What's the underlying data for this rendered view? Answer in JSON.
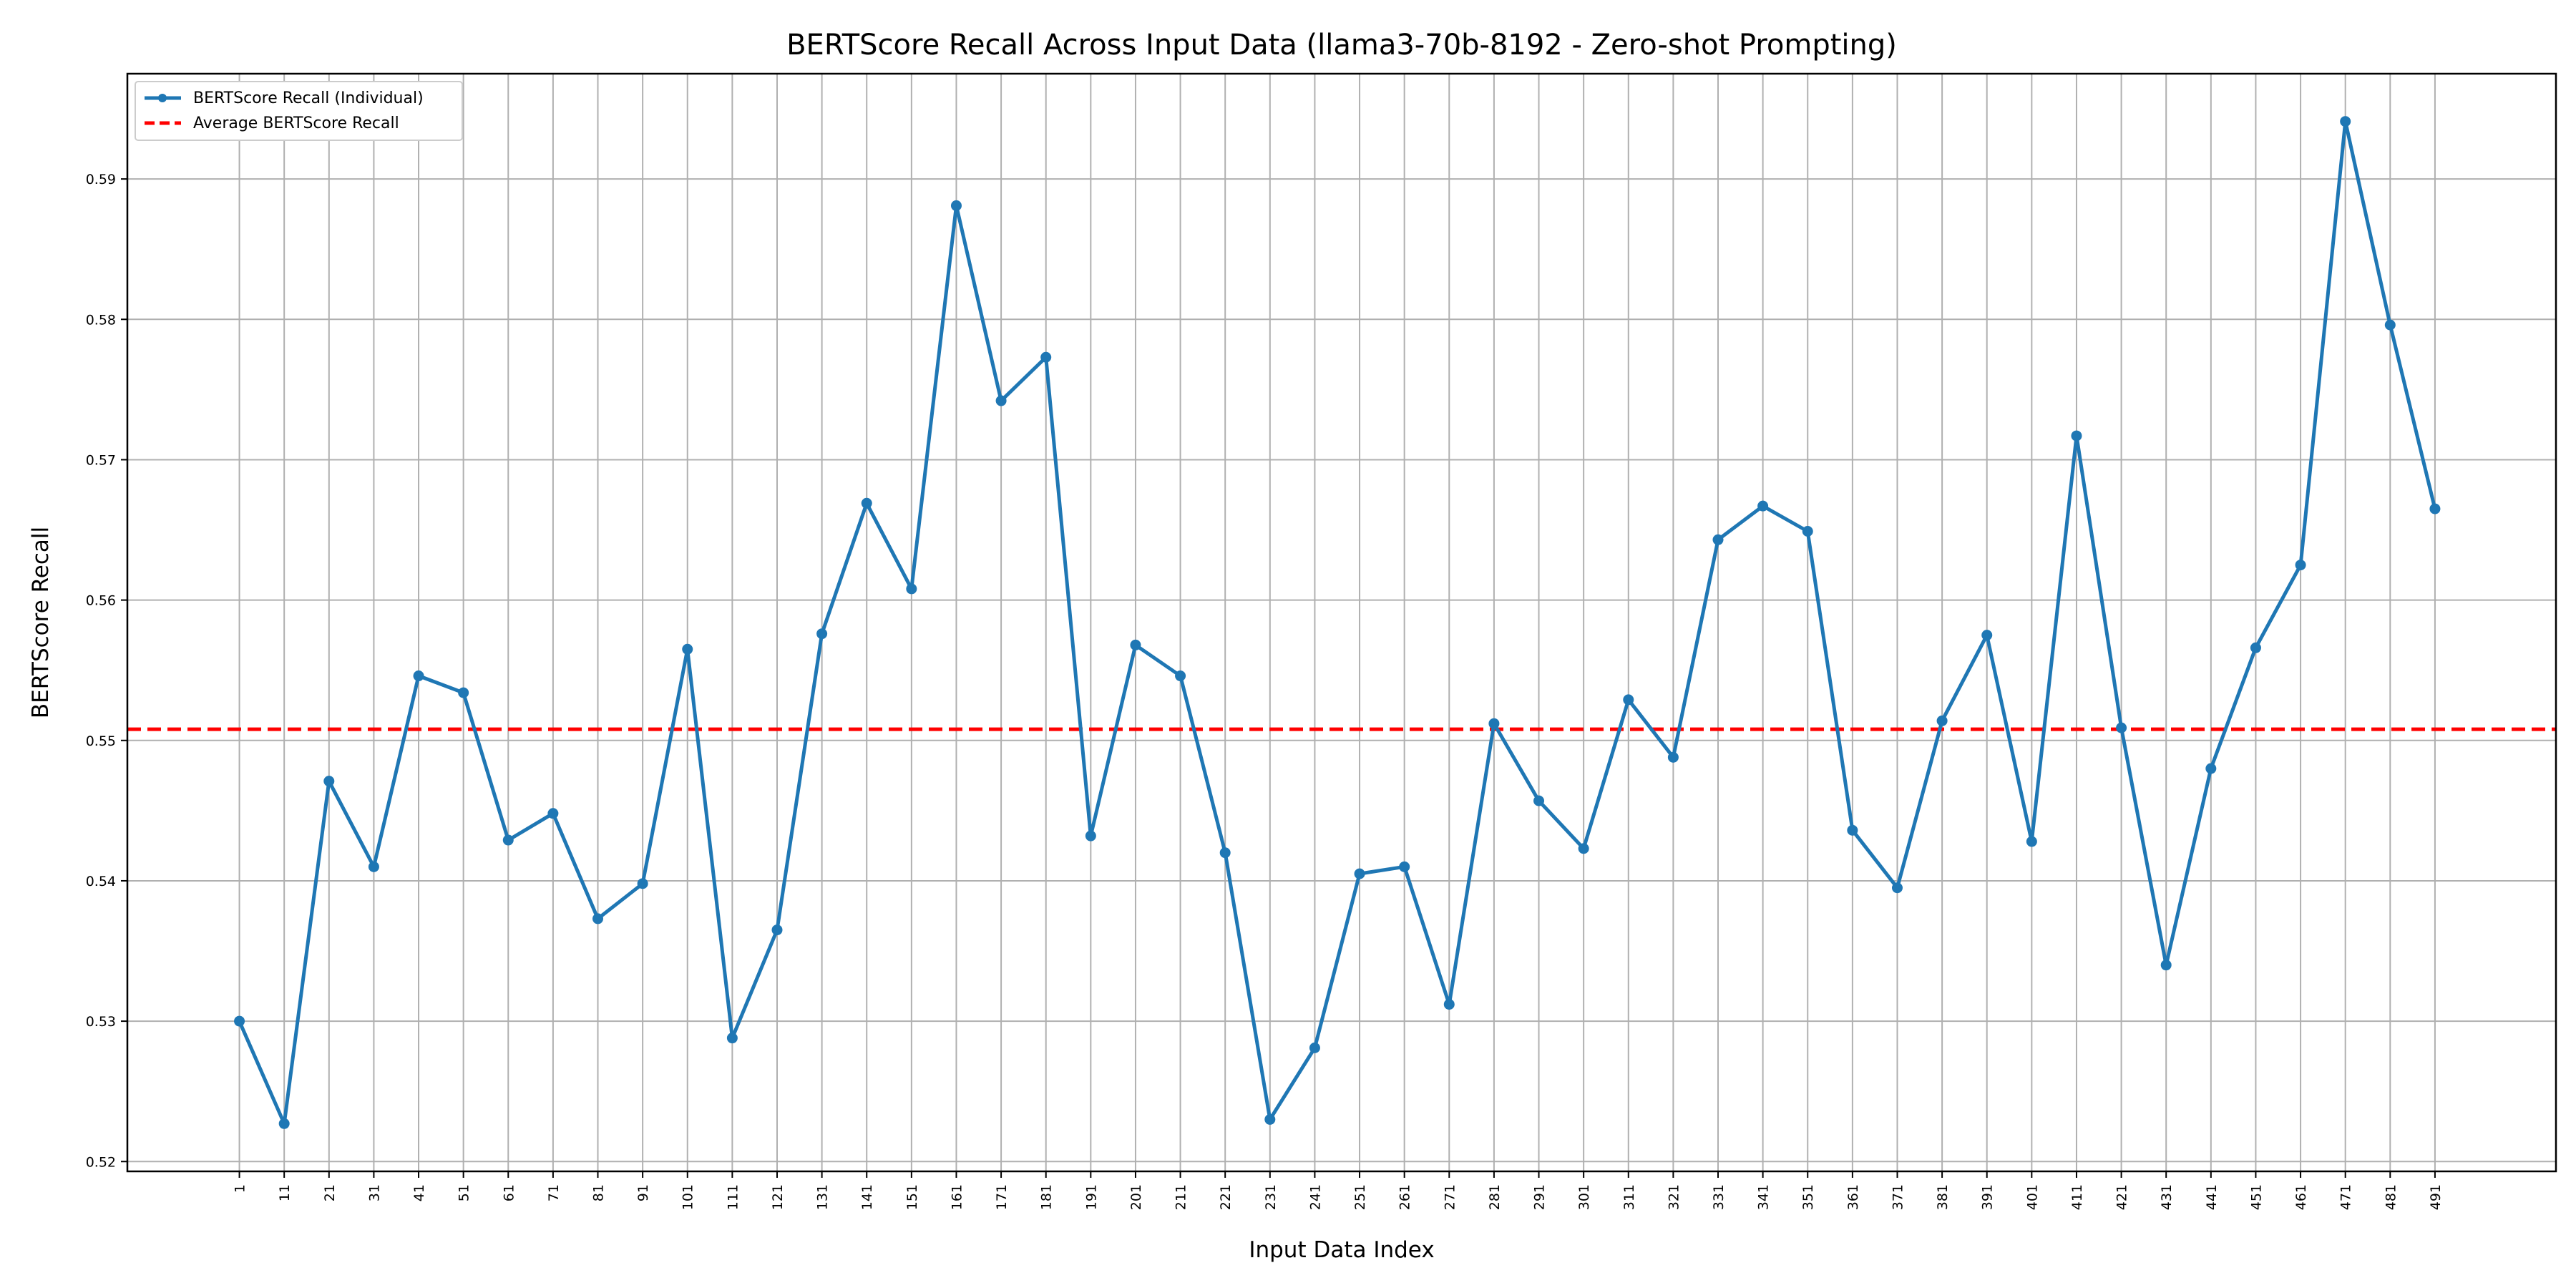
{
  "chart_data": {
    "type": "line",
    "title": "BERTScore Recall Across Input Data (llama3-70b-8192 - Zero-shot Prompting)",
    "xlabel": "Input Data Index",
    "ylabel": "BERTScore Recall",
    "x": [
      1,
      11,
      21,
      31,
      41,
      51,
      61,
      71,
      81,
      91,
      101,
      111,
      121,
      131,
      141,
      151,
      161,
      171,
      181,
      191,
      201,
      211,
      221,
      231,
      241,
      251,
      261,
      271,
      281,
      291,
      301,
      311,
      321,
      331,
      341,
      351,
      361,
      371,
      381,
      391,
      401,
      411,
      421,
      431,
      441,
      451,
      461,
      471,
      481,
      491
    ],
    "x_tick_labels": [
      "1",
      "11",
      "21",
      "31",
      "41",
      "51",
      "61",
      "71",
      "81",
      "91",
      "101",
      "111",
      "121",
      "131",
      "141",
      "151",
      "161",
      "171",
      "181",
      "191",
      "201",
      "211",
      "221",
      "231",
      "241",
      "251",
      "261",
      "271",
      "281",
      "291",
      "301",
      "311",
      "321",
      "331",
      "341",
      "351",
      "361",
      "371",
      "381",
      "391",
      "401",
      "411",
      "421",
      "431",
      "441",
      "451",
      "461",
      "471",
      "481",
      "491"
    ],
    "y_ticks": [
      0.52,
      0.53,
      0.54,
      0.55,
      0.56,
      0.57,
      0.58,
      0.59
    ],
    "y_tick_labels": [
      "0.52",
      "0.53",
      "0.54",
      "0.55",
      "0.56",
      "0.57",
      "0.58",
      "0.59"
    ],
    "xlim": [
      -24,
      518
    ],
    "ylim": [
      0.5193,
      0.5975
    ],
    "grid": true,
    "legend_position": "top-left",
    "series": [
      {
        "name": "BERTScore Recall (Individual)",
        "color": "#1f77b4",
        "style": "solid-with-markers",
        "values": [
          0.53,
          0.5227,
          0.5471,
          0.541,
          0.5546,
          0.5534,
          0.5429,
          0.5448,
          0.5373,
          0.5398,
          0.5565,
          0.5288,
          0.5365,
          0.5576,
          0.5669,
          0.5608,
          0.5881,
          0.5742,
          0.5773,
          0.5432,
          0.5568,
          0.5546,
          0.542,
          0.523,
          0.5281,
          0.5405,
          0.541,
          0.5312,
          0.5512,
          0.5457,
          0.5423,
          0.5529,
          0.5488,
          0.5643,
          0.5667,
          0.5649,
          0.5436,
          0.5395,
          0.5514,
          0.5575,
          0.5428,
          0.5717,
          0.5509,
          0.534,
          0.548,
          0.5566,
          0.5625,
          0.5941,
          0.5796,
          0.5665
        ]
      },
      {
        "name": "Average BERTScore Recall",
        "color": "#ff0000",
        "style": "dashed-horizontal",
        "value": 0.5508
      }
    ]
  }
}
